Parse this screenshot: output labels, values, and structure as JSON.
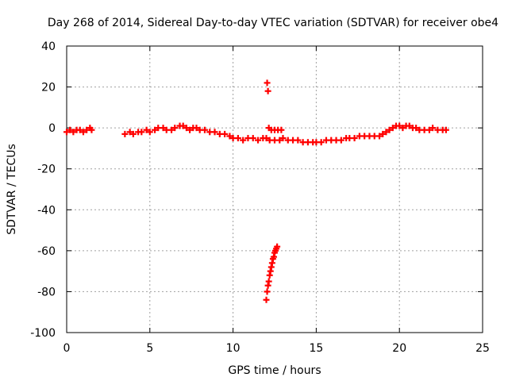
{
  "chart_data": {
    "type": "scatter",
    "title": "Day 268 of 2014, Sidereal Day-to-day VTEC variation (SDTVAR) for receiver obe4",
    "xlabel": "GPS time / hours",
    "ylabel": "SDTVAR / TECUs",
    "xlim": [
      0,
      25
    ],
    "ylim": [
      -100,
      40
    ],
    "xticks": [
      0,
      5,
      10,
      15,
      20,
      25
    ],
    "yticks": [
      -100,
      -80,
      -60,
      -40,
      -20,
      0,
      20,
      40
    ],
    "grid": true,
    "marker": "+",
    "color": "#ff0000",
    "series": [
      {
        "name": "SDTVAR",
        "x": [
          0.0,
          0.2,
          0.4,
          0.6,
          0.8,
          1.0,
          1.2,
          1.4,
          1.5,
          3.5,
          3.8,
          4.0,
          4.3,
          4.5,
          4.8,
          5.0,
          5.3,
          5.5,
          5.8,
          6.0,
          6.3,
          6.5,
          6.8,
          7.0,
          7.2,
          7.4,
          7.6,
          7.8,
          8.0,
          8.3,
          8.6,
          8.9,
          9.2,
          9.5,
          9.8,
          10.0,
          10.3,
          10.6,
          10.9,
          11.2,
          11.5,
          11.8,
          12.0,
          12.05,
          12.1,
          12.0,
          12.05,
          12.1,
          12.15,
          12.2,
          12.25,
          12.3,
          12.35,
          12.4,
          12.45,
          12.5,
          12.55,
          12.6,
          12.65,
          12.15,
          12.3,
          12.5,
          12.7,
          12.9,
          12.2,
          12.5,
          12.8,
          13.0,
          13.3,
          13.6,
          13.9,
          14.2,
          14.5,
          14.8,
          15.0,
          15.3,
          15.6,
          15.9,
          16.2,
          16.5,
          16.8,
          17.0,
          17.3,
          17.6,
          17.9,
          18.2,
          18.5,
          18.8,
          19.0,
          19.2,
          19.4,
          19.6,
          19.8,
          20.0,
          20.2,
          20.4,
          20.6,
          20.8,
          21.0,
          21.2,
          21.5,
          21.8,
          22.0,
          22.3,
          22.6,
          22.8
        ],
        "y": [
          -2,
          -1,
          -2,
          -1,
          -1,
          -2,
          -1,
          0,
          -1,
          -3,
          -2,
          -3,
          -2,
          -2,
          -1,
          -2,
          -1,
          0,
          0,
          -1,
          -1,
          0,
          1,
          1,
          0,
          -1,
          0,
          0,
          -1,
          -1,
          -2,
          -2,
          -3,
          -3,
          -4,
          -5,
          -5,
          -6,
          -5,
          -5,
          -6,
          -5,
          -5,
          22,
          18,
          -84,
          -80,
          -77,
          -75,
          -72,
          -70,
          -68,
          -66,
          -64,
          -63,
          -61,
          -60,
          -59,
          -58,
          0,
          -1,
          -1,
          -1,
          -1,
          -6,
          -6,
          -6,
          -5,
          -6,
          -6,
          -6,
          -7,
          -7,
          -7,
          -7,
          -7,
          -6,
          -6,
          -6,
          -6,
          -5,
          -5,
          -5,
          -4,
          -4,
          -4,
          -4,
          -4,
          -3,
          -2,
          -1,
          0,
          1,
          1,
          0,
          1,
          1,
          0,
          0,
          -1,
          -1,
          -1,
          0,
          -1,
          -1,
          -1
        ]
      }
    ]
  }
}
